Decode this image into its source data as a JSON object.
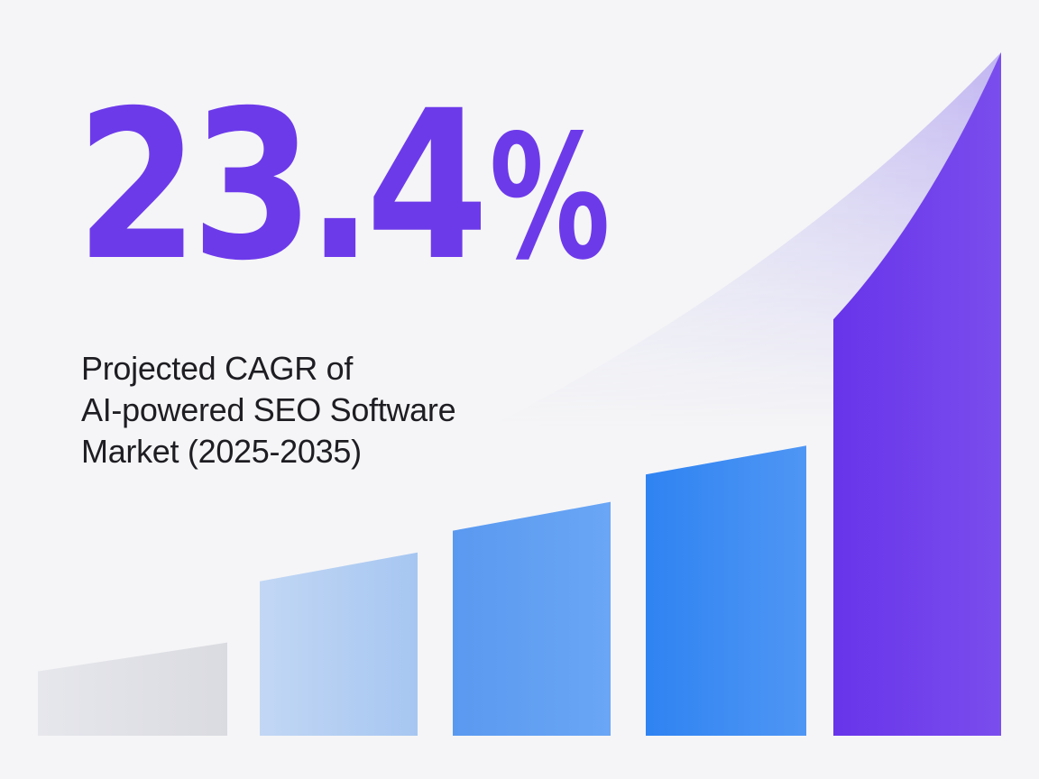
{
  "headline": {
    "value": "23.4",
    "suffix": "%"
  },
  "subtitle": {
    "lines": [
      "Projected CAGR of",
      "AI-powered SEO Software",
      "Market (2025-2035)"
    ]
  },
  "colors": {
    "background": "#f5f5f7",
    "accent_purple": "#6d3aea",
    "accent_blue": "#3386f4",
    "text_dark": "#1d1d22",
    "bar_gray": "#dcdde3"
  },
  "chart_data": {
    "type": "bar",
    "title": "",
    "xlabel": "",
    "ylabel": "",
    "categories": [
      "",
      "",
      "",
      "",
      ""
    ],
    "values": [
      14,
      30,
      39,
      49,
      74
    ],
    "ylim": [
      0,
      100
    ],
    "trend_curve": "exponential growth curve rising left to right",
    "grid": false,
    "legend": "none"
  }
}
